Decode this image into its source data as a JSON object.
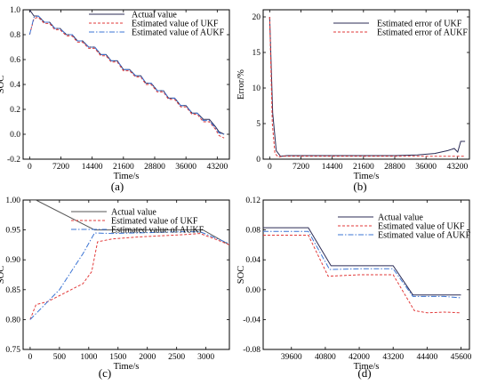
{
  "chart_data": [
    {
      "id": "a",
      "panel_label": "(a)",
      "type": "line",
      "xlabel": "Time/s",
      "ylabel": "SOC",
      "xlim": [
        -1500,
        46000
      ],
      "ylim": [
        -0.2,
        1.0
      ],
      "xticks": [
        0,
        7200,
        14400,
        21600,
        28800,
        36000,
        43200
      ],
      "yticks": [
        -0.2,
        0.0,
        0.2,
        0.4,
        0.6,
        0.8,
        1.0
      ],
      "ytick_labels": [
        "-0.2",
        "0.0",
        "0.2",
        "0.4",
        "0.6",
        "0.8",
        "1.0"
      ],
      "legend": {
        "position": "top-center"
      },
      "series": [
        {
          "name": "Actual value",
          "color": "#2b2b55",
          "style": "solid",
          "x": [
            0,
            1000,
            2000,
            3400,
            4600,
            5800,
            7000,
            8500,
            9800,
            11000,
            12200,
            13600,
            15000,
            16400,
            17600,
            18800,
            20200,
            21600,
            23000,
            24400,
            25600,
            26800,
            28000,
            29400,
            30800,
            32000,
            33400,
            34800,
            36000,
            37400,
            38600,
            40000,
            41400,
            42800,
            43600,
            44800
          ],
          "y": [
            1.0,
            0.95,
            0.95,
            0.9,
            0.9,
            0.85,
            0.85,
            0.8,
            0.8,
            0.75,
            0.75,
            0.7,
            0.7,
            0.64,
            0.64,
            0.59,
            0.59,
            0.52,
            0.52,
            0.47,
            0.47,
            0.41,
            0.41,
            0.35,
            0.35,
            0.29,
            0.29,
            0.23,
            0.23,
            0.17,
            0.17,
            0.12,
            0.12,
            0.06,
            0.02,
            0.0
          ]
        },
        {
          "name": "Estimated value of UKF",
          "color": "#e23a3a",
          "style": "dash",
          "x": [
            0,
            1000,
            2000,
            3400,
            4600,
            5800,
            7000,
            8500,
            9800,
            11000,
            12200,
            13600,
            15000,
            16400,
            17600,
            18800,
            20200,
            21600,
            23000,
            24400,
            25600,
            26800,
            28000,
            29400,
            30800,
            32000,
            33400,
            34800,
            36000,
            37400,
            38600,
            40000,
            41400,
            42800,
            43600,
            44800
          ],
          "y": [
            0.8,
            0.93,
            0.94,
            0.89,
            0.89,
            0.84,
            0.84,
            0.79,
            0.79,
            0.74,
            0.74,
            0.69,
            0.69,
            0.63,
            0.63,
            0.58,
            0.58,
            0.51,
            0.51,
            0.46,
            0.46,
            0.4,
            0.4,
            0.34,
            0.34,
            0.28,
            0.28,
            0.22,
            0.22,
            0.16,
            0.16,
            0.1,
            0.1,
            0.04,
            -0.01,
            -0.03
          ]
        },
        {
          "name": "Estimated value of AUKF",
          "color": "#3b74d4",
          "style": "dashdot",
          "x": [
            0,
            1000,
            2000,
            3400,
            4600,
            5800,
            7000,
            8500,
            9800,
            11000,
            12200,
            13600,
            15000,
            16400,
            17600,
            18800,
            20200,
            21600,
            23000,
            24400,
            25600,
            26800,
            28000,
            29400,
            30800,
            32000,
            33400,
            34800,
            36000,
            37400,
            38600,
            40000,
            41400,
            42800,
            43600,
            44800
          ],
          "y": [
            0.8,
            0.94,
            0.95,
            0.9,
            0.9,
            0.85,
            0.85,
            0.8,
            0.8,
            0.75,
            0.75,
            0.7,
            0.7,
            0.64,
            0.64,
            0.59,
            0.59,
            0.52,
            0.52,
            0.47,
            0.47,
            0.41,
            0.41,
            0.35,
            0.35,
            0.29,
            0.29,
            0.23,
            0.23,
            0.17,
            0.17,
            0.11,
            0.11,
            0.05,
            0.01,
            0.0
          ]
        }
      ]
    },
    {
      "id": "b",
      "panel_label": "(b)",
      "type": "line",
      "xlabel": "Time/s",
      "ylabel": "Error/%",
      "xlim": [
        -1500,
        46000
      ],
      "ylim": [
        0,
        21
      ],
      "xticks": [
        0,
        7200,
        14400,
        21600,
        28800,
        36000,
        43200
      ],
      "yticks": [
        0,
        5,
        10,
        15,
        20
      ],
      "ytick_labels": [
        "0",
        "5",
        "10",
        "15",
        "20"
      ],
      "legend": {
        "position": "top-right"
      },
      "series": [
        {
          "name": "Estimated error of UKF",
          "color": "#2b2b55",
          "style": "solid",
          "x": [
            0,
            700,
            1500,
            2500,
            4000,
            7200,
            14400,
            21600,
            28800,
            34000,
            38000,
            41000,
            42500,
            43300,
            44000,
            45000
          ],
          "y": [
            20,
            6.5,
            1.2,
            0.4,
            0.5,
            0.5,
            0.5,
            0.5,
            0.5,
            0.6,
            0.8,
            1.2,
            1.5,
            1.0,
            2.5,
            2.5
          ]
        },
        {
          "name": "Estimated error of AUKF",
          "color": "#e23a3a",
          "style": "dash",
          "x": [
            0,
            600,
            1200,
            2000,
            3000,
            7200,
            14400,
            21600,
            28800,
            36000,
            43200,
            45000
          ],
          "y": [
            20,
            5.0,
            0.8,
            0.3,
            0.4,
            0.4,
            0.4,
            0.4,
            0.4,
            0.4,
            0.4,
            0.4
          ]
        }
      ]
    },
    {
      "id": "c",
      "panel_label": "(c)",
      "type": "line",
      "xlabel": "Time/s",
      "ylabel": "SOC",
      "xlim": [
        -120,
        3400
      ],
      "ylim": [
        0.75,
        1.0
      ],
      "xticks": [
        0,
        500,
        1000,
        1500,
        2000,
        2500,
        3000
      ],
      "yticks": [
        0.75,
        0.8,
        0.85,
        0.9,
        0.95,
        1.0
      ],
      "ytick_labels": [
        "0.75",
        "0.80",
        "0.85",
        "0.90",
        "0.95",
        "1.00"
      ],
      "legend": {
        "position": "top-center"
      },
      "series": [
        {
          "name": "Actual value",
          "color": "#555555",
          "style": "solid",
          "x": [
            0,
            100,
            1100,
            2950,
            3400
          ],
          "y": [
            1.0,
            1.0,
            0.95,
            0.95,
            0.925
          ]
        },
        {
          "name": "Estimated value of UKF",
          "color": "#e23a3a",
          "style": "dash",
          "x": [
            0,
            100,
            300,
            500,
            700,
            900,
            1050,
            1150,
            1400,
            1800,
            2200,
            2600,
            2900,
            3150,
            3400
          ],
          "y": [
            0.8,
            0.825,
            0.83,
            0.84,
            0.85,
            0.86,
            0.88,
            0.93,
            0.935,
            0.938,
            0.94,
            0.942,
            0.944,
            0.935,
            0.925
          ]
        },
        {
          "name": "Estimated value of AUKF",
          "color": "#3b74d4",
          "style": "dashdot",
          "x": [
            0,
            100,
            300,
            500,
            700,
            900,
            1100,
            1400,
            1800,
            2200,
            2600,
            2900,
            3150,
            3400
          ],
          "y": [
            0.8,
            0.81,
            0.83,
            0.85,
            0.88,
            0.91,
            0.945,
            0.944,
            0.945,
            0.946,
            0.947,
            0.947,
            0.937,
            0.927
          ]
        }
      ]
    },
    {
      "id": "d",
      "panel_label": "(d)",
      "type": "line",
      "xlabel": "Time/s",
      "ylabel": "SOC",
      "xlim": [
        38600,
        45900
      ],
      "ylim": [
        -0.08,
        0.12
      ],
      "xticks": [
        39600,
        40800,
        42000,
        43200,
        44400,
        45600
      ],
      "yticks": [
        -0.08,
        -0.04,
        0.0,
        0.04,
        0.08,
        0.12
      ],
      "ytick_labels": [
        "-0.08",
        "-0.04",
        "0.00",
        "0.04",
        "0.08",
        "0.12"
      ],
      "legend": {
        "position": "top-center"
      },
      "series": [
        {
          "name": "Actual value",
          "color": "#2b2b55",
          "style": "solid",
          "x": [
            38600,
            40200,
            41000,
            43200,
            43900,
            45600
          ],
          "y": [
            0.083,
            0.083,
            0.032,
            0.032,
            -0.007,
            -0.007
          ]
        },
        {
          "name": "Estimated value of UKF",
          "color": "#e23a3a",
          "style": "dash",
          "x": [
            38600,
            40200,
            40900,
            42000,
            43200,
            43950,
            44400,
            45000,
            45600
          ],
          "y": [
            0.073,
            0.073,
            0.018,
            0.02,
            0.02,
            -0.028,
            -0.031,
            -0.03,
            -0.031
          ]
        },
        {
          "name": "Estimated value of AUKF",
          "color": "#3b74d4",
          "style": "dashdot",
          "x": [
            38600,
            40200,
            40950,
            42000,
            43200,
            43900,
            44400,
            45000,
            45600
          ],
          "y": [
            0.078,
            0.078,
            0.027,
            0.028,
            0.028,
            -0.009,
            -0.009,
            -0.009,
            -0.011
          ]
        }
      ]
    }
  ]
}
